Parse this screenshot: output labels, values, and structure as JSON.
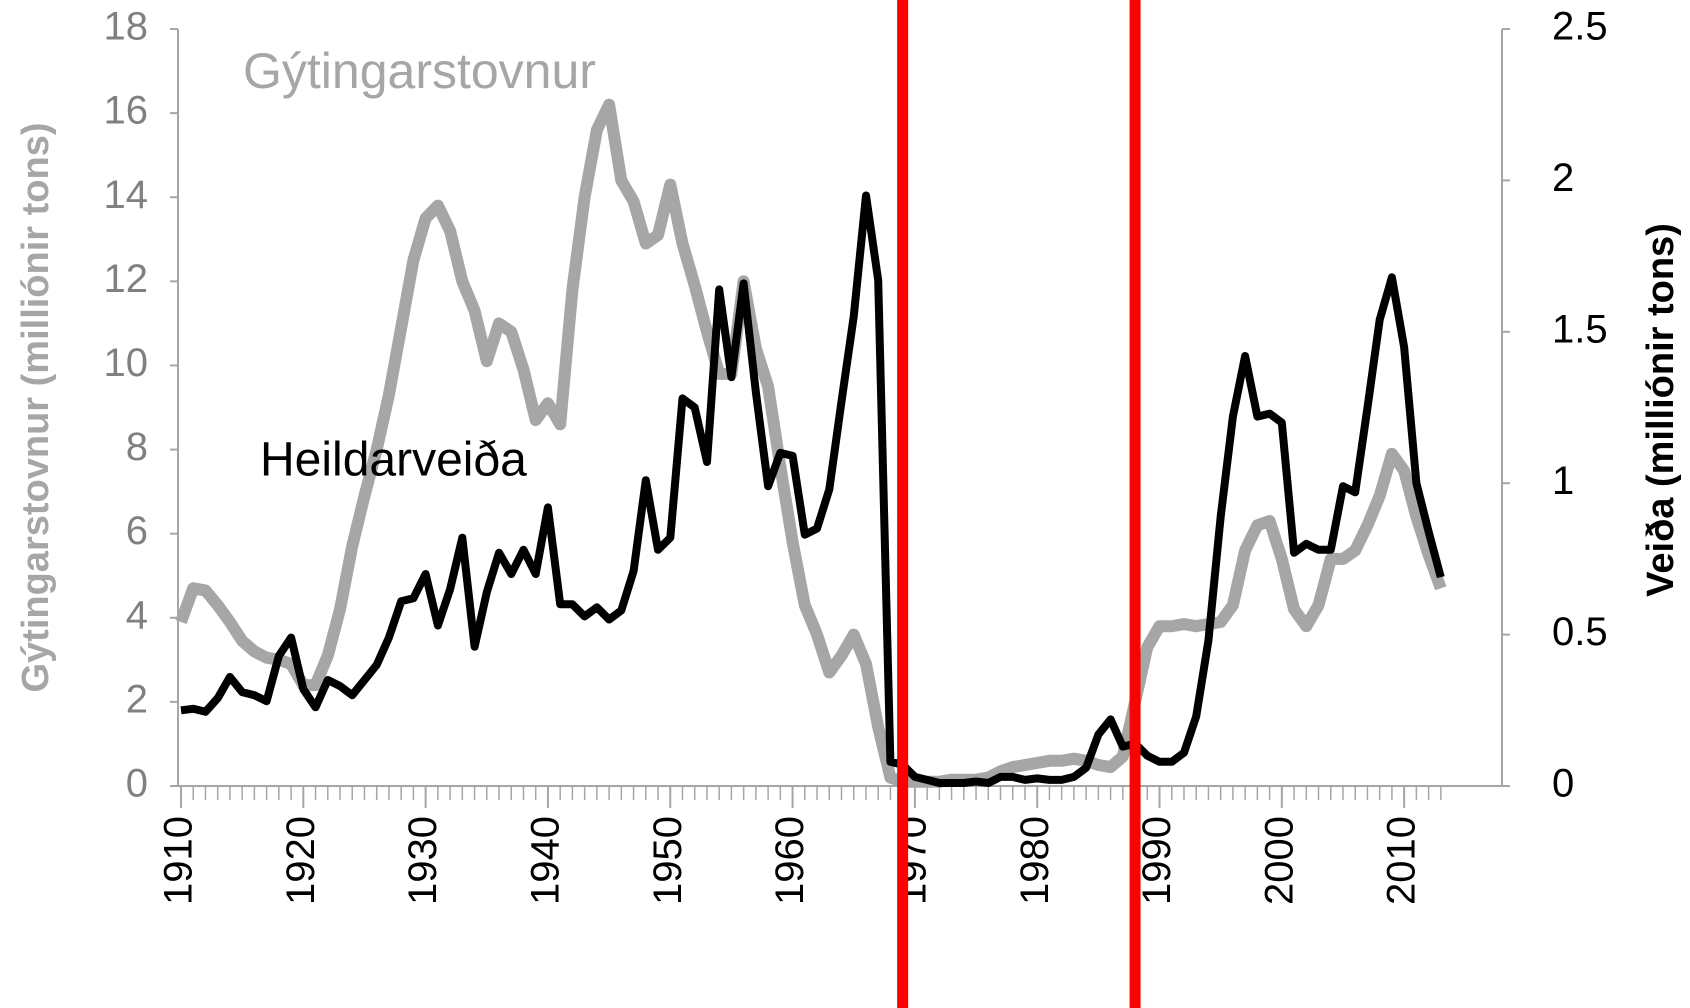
{
  "chart_data": {
    "type": "line",
    "annotations": [
      {
        "text": "Gýtingarstovnur",
        "color": "#a6a6a6"
      },
      {
        "text": "Heildarveiða",
        "color": "#000000"
      }
    ],
    "ylabel": "Gýtingarstovnur  (milliónir tons)",
    "y2label": "Veiða (milliónir tons)",
    "x": [
      1910,
      1911,
      1912,
      1913,
      1914,
      1915,
      1916,
      1917,
      1918,
      1919,
      1920,
      1921,
      1922,
      1923,
      1924,
      1925,
      1926,
      1927,
      1928,
      1929,
      1930,
      1931,
      1932,
      1933,
      1934,
      1935,
      1936,
      1937,
      1938,
      1939,
      1940,
      1941,
      1942,
      1943,
      1944,
      1945,
      1946,
      1947,
      1948,
      1949,
      1950,
      1951,
      1952,
      1953,
      1954,
      1955,
      1956,
      1957,
      1958,
      1959,
      1960,
      1961,
      1962,
      1963,
      1964,
      1965,
      1966,
      1967,
      1968,
      1969,
      1970,
      1971,
      1972,
      1973,
      1974,
      1975,
      1976,
      1977,
      1978,
      1979,
      1980,
      1981,
      1982,
      1983,
      1984,
      1985,
      1986,
      1987,
      1988,
      1989,
      1990,
      1991,
      1992,
      1993,
      1994,
      1995,
      1996,
      1997,
      1998,
      1999,
      2000,
      2001,
      2002,
      2003,
      2004,
      2005,
      2006,
      2007,
      2008,
      2009,
      2010,
      2011,
      2012,
      2013
    ],
    "series": [
      {
        "name": "Gýtingarstovnur",
        "color": "#a6a6a6",
        "axis": "y",
        "values": [
          3.9,
          4.7,
          4.65,
          4.3,
          3.9,
          3.45,
          3.2,
          3.05,
          3.0,
          2.9,
          2.4,
          2.4,
          3.1,
          4.2,
          5.7,
          6.9,
          8.0,
          9.3,
          10.9,
          12.5,
          13.5,
          13.8,
          13.2,
          12.0,
          11.3,
          10.1,
          11.0,
          10.8,
          9.9,
          8.7,
          9.1,
          8.6,
          11.8,
          14.0,
          15.6,
          16.2,
          14.4,
          13.9,
          12.9,
          13.1,
          14.3,
          12.9,
          11.9,
          10.8,
          9.8,
          9.8,
          12.0,
          10.4,
          9.5,
          7.6,
          5.8,
          4.3,
          3.6,
          2.7,
          3.1,
          3.6,
          2.9,
          1.4,
          0.2,
          0.1,
          0.1,
          0.1,
          0.1,
          0.15,
          0.15,
          0.15,
          0.2,
          0.35,
          0.45,
          0.5,
          0.55,
          0.6,
          0.6,
          0.65,
          0.6,
          0.5,
          0.45,
          0.7,
          2.0,
          3.3,
          3.8,
          3.8,
          3.85,
          3.8,
          3.85,
          3.9,
          4.3,
          5.6,
          6.2,
          6.3,
          5.4,
          4.2,
          3.8,
          4.3,
          5.4,
          5.4,
          5.6,
          6.2,
          6.9,
          7.9,
          7.5,
          6.4,
          5.5,
          4.7
        ]
      },
      {
        "name": "Heildarveiða",
        "color": "#000000",
        "axis": "y2",
        "values": [
          0.25,
          0.255,
          0.245,
          0.29,
          0.36,
          0.31,
          0.3,
          0.28,
          0.43,
          0.49,
          0.32,
          0.26,
          0.35,
          0.33,
          0.3,
          0.35,
          0.4,
          0.49,
          0.61,
          0.62,
          0.7,
          0.53,
          0.65,
          0.82,
          0.46,
          0.64,
          0.77,
          0.7,
          0.78,
          0.7,
          0.92,
          0.6,
          0.6,
          0.56,
          0.59,
          0.55,
          0.58,
          0.71,
          1.01,
          0.78,
          0.82,
          1.28,
          1.25,
          1.07,
          1.64,
          1.35,
          1.66,
          1.3,
          0.99,
          1.1,
          1.09,
          0.83,
          0.85,
          0.98,
          1.27,
          1.55,
          1.95,
          1.67,
          0.08,
          0.07,
          0.03,
          0.02,
          0.01,
          0.01,
          0.01,
          0.015,
          0.01,
          0.03,
          0.03,
          0.02,
          0.025,
          0.02,
          0.02,
          0.03,
          0.06,
          0.17,
          0.22,
          0.13,
          0.14,
          0.1,
          0.08,
          0.08,
          0.11,
          0.23,
          0.48,
          0.89,
          1.22,
          1.42,
          1.22,
          1.23,
          1.2,
          0.77,
          0.8,
          0.78,
          0.78,
          0.99,
          0.97,
          1.25,
          1.54,
          1.68,
          1.45,
          1.0,
          0.84,
          0.69
        ]
      }
    ],
    "vlines": [
      {
        "x": 1969,
        "color": "#ff0000"
      },
      {
        "x": 1988,
        "color": "#ff0000"
      }
    ],
    "xlim": [
      1910,
      2018
    ],
    "xticks": [
      1910,
      1920,
      1930,
      1940,
      1950,
      1960,
      1970,
      1980,
      1990,
      2000,
      2010
    ],
    "ylim": [
      0,
      18
    ],
    "yticks": [
      0,
      2,
      4,
      6,
      8,
      10,
      12,
      14,
      16,
      18
    ],
    "y2lim": [
      0,
      2.5
    ],
    "y2ticks": [
      0,
      0.5,
      1,
      1.5,
      2,
      2.5
    ]
  }
}
